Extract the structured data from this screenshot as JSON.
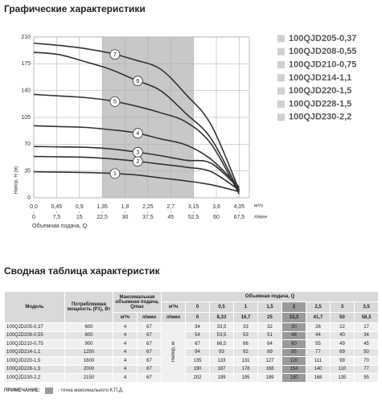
{
  "title": "Графические характеристики",
  "chart_data": {
    "type": "line",
    "ylabel": "Напор, H (м)",
    "xlabel": "Объемная подача, Q",
    "x_unit": "м³/ч",
    "x2_unit": "л/мин",
    "x": [
      0,
      0.5,
      1,
      1.5,
      2,
      2.5,
      3,
      3.5,
      4.05
    ],
    "xlim": [
      0,
      4.25
    ],
    "xticks": [
      {
        "value": 0,
        "label": "0,0"
      },
      {
        "value": 0.45,
        "label": "0,45"
      },
      {
        "value": 0.9,
        "label": "0,9"
      },
      {
        "value": 1.35,
        "label": "1,35"
      },
      {
        "value": 1.8,
        "label": "1,8"
      },
      {
        "value": 2.25,
        "label": "2,25"
      },
      {
        "value": 2.7,
        "label": "2,7"
      },
      {
        "value": 3.15,
        "label": "3,15"
      },
      {
        "value": 3.6,
        "label": "3,6"
      },
      {
        "value": 4.05,
        "label": "4,05"
      }
    ],
    "x2lim": [
      0,
      70.83
    ],
    "x2ticks": [
      0,
      {
        "value": 7.5,
        "label": "7,5"
      },
      15,
      {
        "value": 22.5,
        "label": "22,5"
      },
      30,
      {
        "value": 37.5,
        "label": "37,5"
      },
      45,
      {
        "value": 52.5,
        "label": "52,5"
      },
      60,
      {
        "value": 67.5,
        "label": "67,5"
      }
    ],
    "ylim": [
      0,
      210
    ],
    "yticks": [
      0,
      35,
      70,
      105,
      140,
      175,
      210
    ],
    "grid": true,
    "highlight_range": [
      1.35,
      3.15
    ],
    "highlight_color": "#c8c8c8",
    "legend": "right",
    "series": [
      {
        "name": "100QJD205-0,37",
        "label": "1",
        "color": "#333333",
        "values": [
          34,
          33.5,
          33,
          32,
          30,
          26,
          22,
          17,
          8
        ]
      },
      {
        "name": "100QJD208-0,55",
        "label": "2",
        "color": "#333333",
        "values": [
          54,
          53.5,
          53,
          51,
          48,
          44,
          40,
          34,
          10
        ]
      },
      {
        "name": "100QJD210-0,75",
        "label": "3",
        "color": "#333333",
        "values": [
          67,
          66.5,
          66,
          64,
          60,
          55,
          49,
          45,
          12
        ]
      },
      {
        "name": "100QJD214-1,1",
        "label": "4",
        "color": "#333333",
        "values": [
          94,
          93,
          92,
          89,
          85,
          77,
          69,
          50,
          14
        ]
      },
      {
        "name": "100QJD220-1,5",
        "label": "5",
        "color": "#333333",
        "values": [
          135,
          133,
          131,
          127,
          120,
          111,
          99,
          70,
          5
        ]
      },
      {
        "name": "100QJD228-1,5",
        "label": "6",
        "color": "#333333",
        "values": [
          190,
          187,
          178,
          168,
          154,
          140,
          110,
          77,
          8
        ]
      },
      {
        "name": "100QJD230-2,2",
        "label": "7",
        "color": "#333333",
        "values": [
          202,
          199,
          195,
          189,
          180,
          168,
          135,
          95,
          10
        ]
      }
    ]
  },
  "table_title": "Сводная таблица характеристик",
  "table": {
    "headers": {
      "model": "Модель",
      "power": "Потребляемая мощность (P1), Вт",
      "qmax": "Максимальная объемная подача, Qmax",
      "flow": "Объемная подача, Q",
      "head": "Напор, м",
      "unit_m3": "м³/ч",
      "unit_lmin": "л/мин"
    },
    "flow_m3": [
      "0",
      "0,5",
      "1",
      "1,5",
      "2",
      "2,5",
      "3",
      "3,5"
    ],
    "flow_lmin": [
      "0",
      "8,33",
      "16,7",
      "25",
      "33,3",
      "41,7",
      "50",
      "58,3"
    ],
    "highlight_column": 4,
    "rows": [
      [
        "100QJD205-0,37",
        "600",
        "4",
        "67",
        "34",
        "33,5",
        "33",
        "32",
        "30",
        "26",
        "22",
        "17"
      ],
      [
        "100QJD208-0,55",
        "800",
        "4",
        "67",
        "54",
        "53,5",
        "53",
        "51",
        "48",
        "44",
        "40",
        "34"
      ],
      [
        "100QJD210-0,75",
        "900",
        "4",
        "67",
        "67",
        "66,5",
        "66",
        "64",
        "60",
        "55",
        "49",
        "45"
      ],
      [
        "100QJD214-1,1",
        "1250",
        "4",
        "67",
        "94",
        "93",
        "92",
        "89",
        "85",
        "77",
        "69",
        "50"
      ],
      [
        "100QJD220-1,5",
        "1600",
        "4",
        "67",
        "135",
        "133",
        "131",
        "127",
        "120",
        "111",
        "99",
        "70"
      ],
      [
        "100QJD228-1,5",
        "2000",
        "4",
        "67",
        "190",
        "187",
        "178",
        "168",
        "154",
        "140",
        "110",
        "77"
      ],
      [
        "100QJD230-2,2",
        "2150",
        "4",
        "67",
        "202",
        "199",
        "195",
        "189",
        "180",
        "168",
        "135",
        "95"
      ]
    ]
  },
  "note": {
    "label": "ПРИМЕЧАНИЕ:",
    "text": "- точка максимального К.П.Д."
  }
}
